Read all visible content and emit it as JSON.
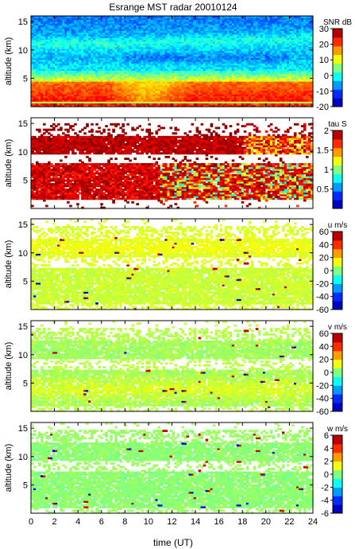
{
  "title": "Esrange MST radar 20010124",
  "colormap": [
    "#00008f",
    "#0000ff",
    "#0080ff",
    "#00ffff",
    "#80ff80",
    "#ffff00",
    "#ff8000",
    "#ff0000",
    "#800000"
  ],
  "chart_data": [
    {
      "type": "heatmap",
      "name": "snr",
      "ylabel": "altitude (km)",
      "xlim": [
        0,
        24
      ],
      "ylim": [
        0,
        16
      ],
      "yticks": [
        5,
        10,
        15
      ],
      "colorbar": {
        "label": "SNR dB",
        "range": [
          -20,
          30
        ],
        "ticks": [
          -20,
          -10,
          0,
          10,
          20,
          30
        ]
      }
    },
    {
      "type": "heatmap",
      "name": "tau",
      "ylabel": "altitude (km)",
      "xlim": [
        0,
        24
      ],
      "ylim": [
        0,
        16
      ],
      "yticks": [
        5,
        10,
        15
      ],
      "colorbar": {
        "label": "tau S",
        "range": [
          0,
          2
        ],
        "ticks": [
          0.5,
          1,
          1.5,
          2
        ]
      }
    },
    {
      "type": "heatmap",
      "name": "u",
      "ylabel": "altitude (km)",
      "xlim": [
        0,
        24
      ],
      "ylim": [
        0,
        16
      ],
      "yticks": [
        5,
        10,
        15
      ],
      "colorbar": {
        "label": "u m/s",
        "range": [
          -60,
          60
        ],
        "ticks": [
          -60,
          -40,
          -20,
          0,
          20,
          40,
          60
        ]
      }
    },
    {
      "type": "heatmap",
      "name": "v",
      "ylabel": "altitude (km)",
      "xlim": [
        0,
        24
      ],
      "ylim": [
        0,
        16
      ],
      "yticks": [
        5,
        10,
        15
      ],
      "colorbar": {
        "label": "v m/s",
        "range": [
          -60,
          60
        ],
        "ticks": [
          -60,
          -40,
          -20,
          0,
          20,
          40,
          60
        ]
      }
    },
    {
      "type": "heatmap",
      "name": "w",
      "ylabel": "altitude (km)",
      "xlabel": "time (UT)",
      "xlim": [
        0,
        24
      ],
      "ylim": [
        0,
        16
      ],
      "yticks": [
        5,
        10,
        15
      ],
      "xticks": [
        0,
        2,
        4,
        6,
        8,
        10,
        12,
        14,
        16,
        18,
        20,
        22,
        24
      ],
      "colorbar": {
        "label": "w m/s",
        "range": [
          -6,
          6
        ],
        "ticks": [
          -6,
          -4,
          -2,
          0,
          2,
          4,
          6
        ]
      }
    }
  ]
}
